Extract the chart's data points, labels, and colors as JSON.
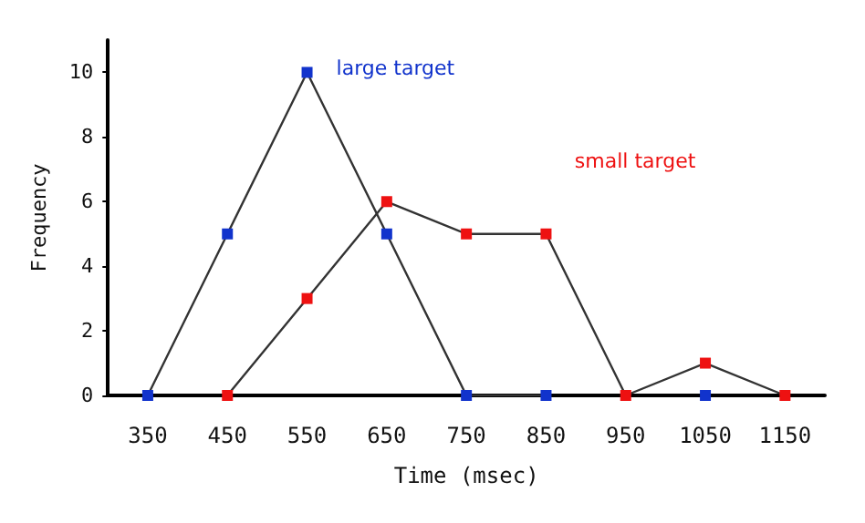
{
  "chart_data": {
    "type": "line",
    "xlabel": "Time (msec)",
    "ylabel": "Frequency",
    "categories": [
      "350",
      "450",
      "550",
      "650",
      "750",
      "850",
      "950",
      "1050",
      "1150"
    ],
    "series": [
      {
        "name": "large target",
        "color": "#1133cc",
        "values": [
          0,
          5,
          10,
          5,
          0,
          0,
          null,
          0,
          null
        ]
      },
      {
        "name": "small target",
        "color": "#ee1111",
        "values": [
          null,
          0,
          3,
          6,
          5,
          5,
          0,
          1,
          0
        ]
      }
    ],
    "ylim": [
      0,
      11
    ],
    "yticks": [
      0,
      2,
      4,
      6,
      8,
      10
    ],
    "grid": false,
    "legend": false,
    "marker": "square",
    "line_style": "solid"
  }
}
